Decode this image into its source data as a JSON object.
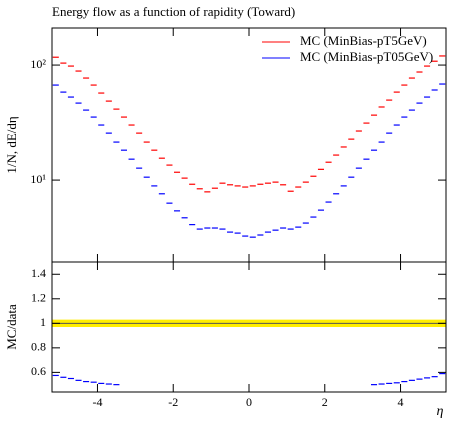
{
  "chart_data": [
    {
      "type": "scatter",
      "title": "Energy flow as a function of rapidity (Toward)",
      "ylabel": "1/N, dE/dη",
      "x": [
        -5.1,
        -4.9,
        -4.7,
        -4.5,
        -4.3,
        -4.1,
        -3.9,
        -3.7,
        -3.5,
        -3.3,
        -3.1,
        -2.9,
        -2.7,
        -2.5,
        -2.3,
        -2.1,
        -1.9,
        -1.7,
        -1.5,
        -1.3,
        -1.1,
        -0.9,
        -0.7,
        -0.5,
        -0.3,
        -0.1,
        0.1,
        0.3,
        0.5,
        0.7,
        0.9,
        1.1,
        1.3,
        1.5,
        1.7,
        1.9,
        2.1,
        2.3,
        2.5,
        2.7,
        2.9,
        3.1,
        3.3,
        3.5,
        3.7,
        3.9,
        4.1,
        4.3,
        4.5,
        4.7,
        4.9,
        5.1
      ],
      "xlim": [
        -5.2,
        5.2
      ],
      "ylim": [
        1.94,
        210
      ],
      "log_y": true,
      "yticks": [
        {
          "value": 10,
          "label": "10¹"
        },
        {
          "value": 100,
          "label": "10²"
        }
      ],
      "legend": "upper right",
      "series": [
        {
          "name": "MC (MinBias-pT5GeV)",
          "color": "#ff0000",
          "values": [
            117,
            104,
            98,
            88.7,
            77.1,
            67.0,
            57.1,
            48.6,
            41.4,
            35.3,
            30.1,
            25.6,
            21.4,
            18.2,
            15.5,
            13.5,
            11.7,
            10.4,
            9.2,
            8.4,
            7.9,
            8.5,
            9.4,
            9.1,
            8.9,
            8.7,
            8.9,
            9.2,
            9.4,
            9.6,
            9.1,
            8.0,
            8.7,
            9.6,
            10.8,
            12.4,
            14.3,
            16.5,
            19.4,
            22.7,
            26.7,
            31.3,
            36.7,
            43.2,
            49.6,
            58.2,
            67.0,
            77.1,
            87.0,
            98,
            108,
            120
          ]
        },
        {
          "name": "MC (MinBias-pT05GeV)",
          "color": "#0000ff",
          "values": [
            67.0,
            58.2,
            52.7,
            46.7,
            40.6,
            35.3,
            30.1,
            25.6,
            21.4,
            18.2,
            15.2,
            12.7,
            10.6,
            8.9,
            7.6,
            6.3,
            5.4,
            4.7,
            4.1,
            3.75,
            3.83,
            3.83,
            3.75,
            3.53,
            3.46,
            3.26,
            3.19,
            3.33,
            3.53,
            3.67,
            3.83,
            3.75,
            3.9,
            4.23,
            4.77,
            5.48,
            6.44,
            7.6,
            8.9,
            10.6,
            12.7,
            15.2,
            18.2,
            21.4,
            25.6,
            30.1,
            35.3,
            40.6,
            46.7,
            52.7,
            60.7,
            68.4
          ]
        }
      ]
    },
    {
      "type": "ratio",
      "xlabel": "η",
      "ylabel": "MC/data",
      "xticks": [
        -4,
        -2,
        0,
        2,
        4
      ],
      "ylim": [
        0.44,
        1.5
      ],
      "yticks": [
        0.6,
        0.8,
        1,
        1.2,
        1.4
      ],
      "reference": {
        "value": 1,
        "band": 0.03,
        "color": "#ffee00"
      },
      "series": [
        {
          "color": "#0000ff",
          "values": [
            0.575,
            0.56,
            0.55,
            0.535,
            0.525,
            0.52,
            0.51,
            0.505,
            0.5,
            null,
            null,
            null,
            null,
            null,
            null,
            null,
            null,
            null,
            null,
            null,
            null,
            null,
            null,
            null,
            null,
            null,
            null,
            null,
            null,
            null,
            null,
            null,
            null,
            null,
            null,
            null,
            null,
            null,
            null,
            null,
            null,
            null,
            0.5,
            0.505,
            0.51,
            0.515,
            0.525,
            0.535,
            0.545,
            0.555,
            0.565,
            0.59
          ]
        }
      ]
    }
  ]
}
